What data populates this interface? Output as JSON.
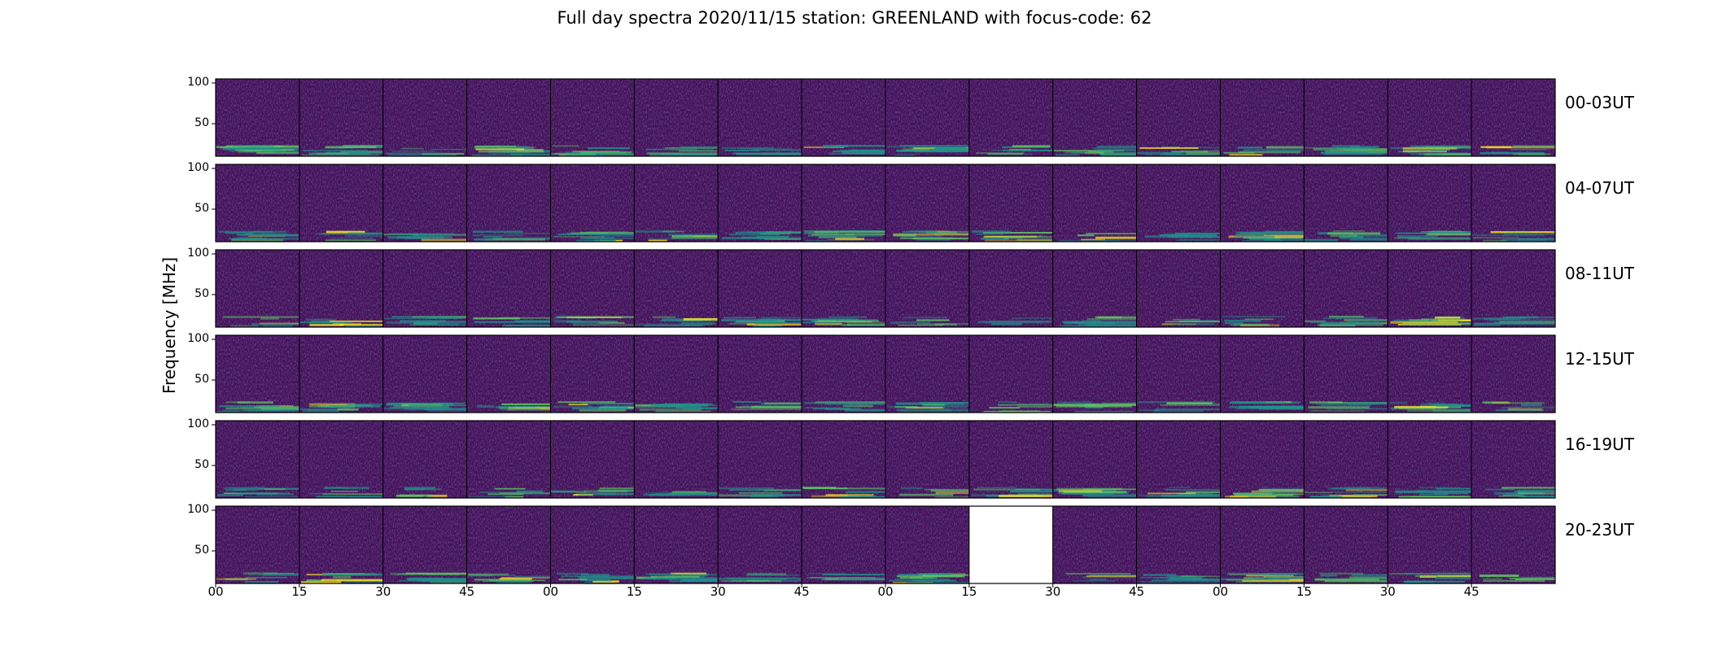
{
  "chart_data": {
    "type": "heatmap",
    "title": "Full day spectra 2020/11/15 station: GREENLAND with focus-code: 62",
    "ylabel": "Frequency [MHz]",
    "xlabel": "",
    "y_ticks": [
      "100",
      "50"
    ],
    "ylim": [
      10,
      105
    ],
    "x_ticks": [
      "00",
      "15",
      "30",
      "45",
      "00",
      "15",
      "30",
      "45",
      "00",
      "15",
      "30",
      "45",
      "00",
      "15",
      "30",
      "45"
    ],
    "rows": [
      {
        "label": "00-03UT",
        "missing_panels": []
      },
      {
        "label": "04-07UT",
        "missing_panels": []
      },
      {
        "label": "08-11UT",
        "missing_panels": []
      },
      {
        "label": "12-15UT",
        "missing_panels": []
      },
      {
        "label": "16-19UT",
        "missing_panels": []
      },
      {
        "label": "20-23UT",
        "missing_panels": [
          9
        ]
      }
    ],
    "panels_per_row": 16,
    "minutes_per_panel": 15,
    "colormap": [
      "#440154",
      "#3b528b",
      "#21918c",
      "#5ec962",
      "#fde725"
    ],
    "background": "#45105a",
    "grid": false,
    "legend": "none"
  }
}
